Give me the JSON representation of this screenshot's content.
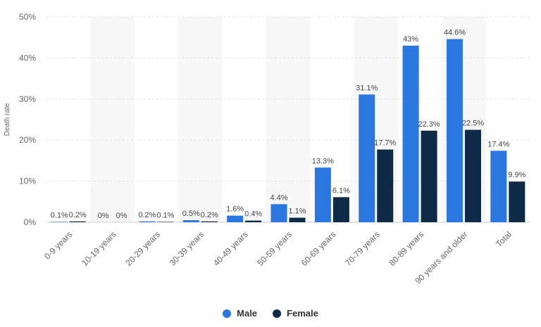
{
  "chart_data": {
    "type": "bar",
    "ylabel": "Death rate",
    "xlabel": "",
    "ylim": [
      0,
      50
    ],
    "yticks": [
      "0%",
      "10%",
      "20%",
      "30%",
      "40%",
      "50%"
    ],
    "categories": [
      "0-9 years",
      "10-19 years",
      "20-29 years",
      "30-39 years",
      "40-49 years",
      "50-59 years",
      "60-69 years",
      "70-79 years",
      "80-89 years",
      "90 years and older",
      "Total"
    ],
    "series": [
      {
        "name": "Male",
        "color": "#2a77e0",
        "values": [
          0.1,
          0,
          0.2,
          0.5,
          1.6,
          4.4,
          13.3,
          31.1,
          43,
          44.6,
          17.4
        ],
        "labels": [
          "0.1%",
          "0%",
          "0.2%",
          "0.5%",
          "1.6%",
          "4.4%",
          "13.3%",
          "31.1%",
          "43%",
          "44.6%",
          "17.4%"
        ]
      },
      {
        "name": "Female",
        "color": "#0e2a47",
        "values": [
          0.2,
          0,
          0.1,
          0.2,
          0.4,
          1.1,
          6.1,
          17.7,
          22.3,
          22.5,
          9.9
        ],
        "labels": [
          "0.2%",
          "0%",
          "0.1%",
          "0.2%",
          "0.4%",
          "1.1%",
          "6.1%",
          "17.7%",
          "22.3%",
          "22.5%",
          "9.9%"
        ]
      }
    ],
    "grid": true,
    "legend_position": "bottom-center"
  }
}
